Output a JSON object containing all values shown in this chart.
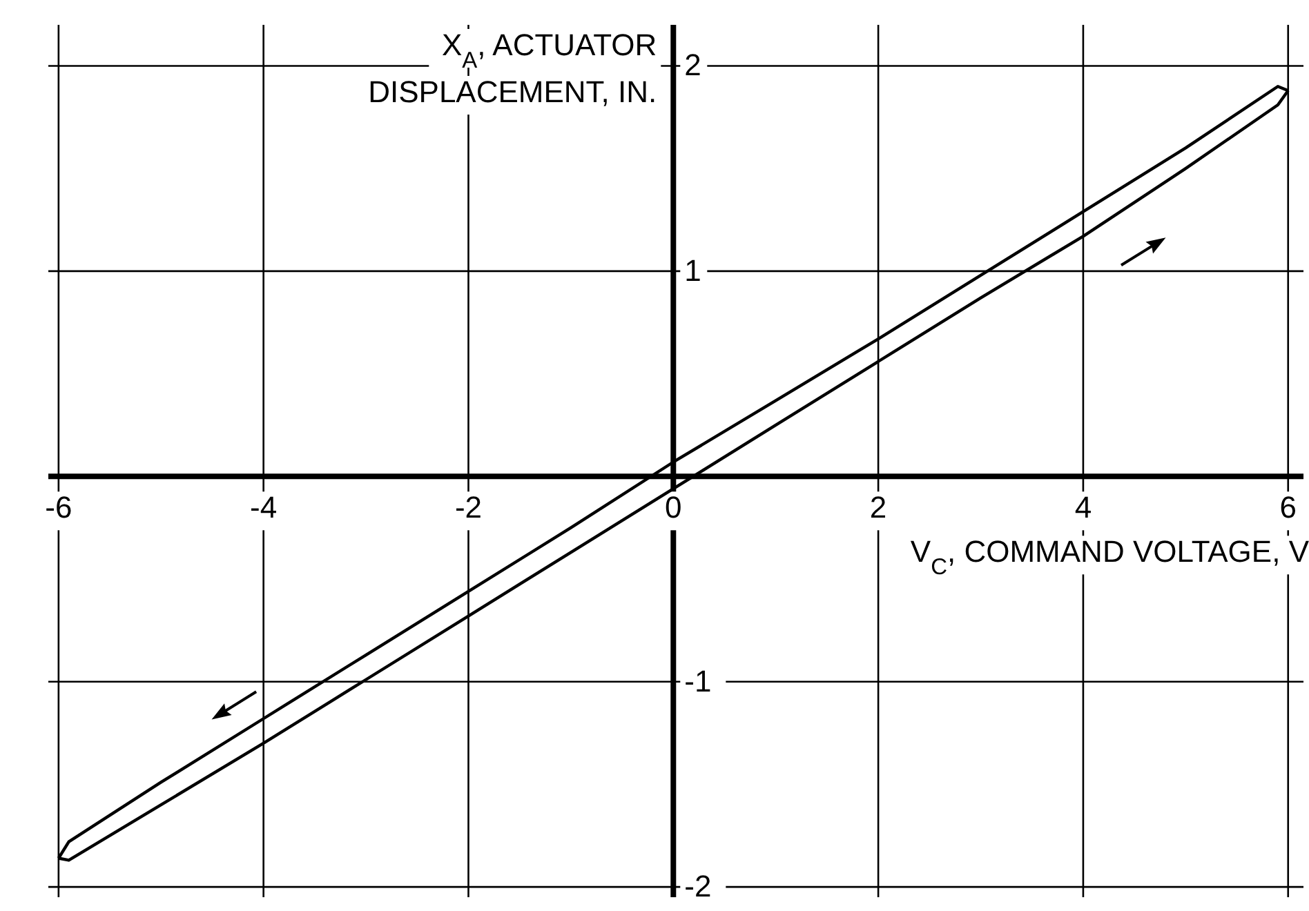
{
  "chart_data": {
    "type": "line",
    "xlabel": "V$_{C}$, COMMAND VOLTAGE, V",
    "ylabel": "X$_{A}$, ACTUATOR DISPLACEMENT, IN.",
    "xlim": [
      -6.1,
      6.15
    ],
    "ylim": [
      -2.05,
      2.2
    ],
    "xticks": [
      -6,
      -4,
      -2,
      0,
      2,
      4,
      6
    ],
    "yticks": [
      -2,
      -1,
      {
        "value": 0,
        "label": null
      },
      1,
      2
    ],
    "grid": true,
    "marker": "none",
    "line_style": "solid",
    "series": [
      {
        "color": "#000000",
        "x": [
          -6,
          -5.9,
          -5,
          -4,
          -3,
          -2,
          -1,
          0,
          1,
          2,
          3,
          4,
          5,
          5.9,
          6
        ],
        "values": [
          -1.86,
          -1.87,
          -1.6,
          -1.3,
          -0.99,
          -0.68,
          -0.37,
          -0.06,
          0.25,
          0.56,
          0.87,
          1.17,
          1.5,
          1.81,
          1.88
        ]
      },
      {
        "color": "#000000",
        "x": [
          -6,
          -5.9,
          -5,
          -4,
          -3,
          -2,
          -1,
          0,
          1,
          2,
          3,
          4,
          5,
          5.9,
          6
        ],
        "values": [
          -1.86,
          -1.78,
          -1.49,
          -1.18,
          -0.87,
          -0.56,
          -0.25,
          0.07,
          0.37,
          0.67,
          0.98,
          1.29,
          1.6,
          1.9,
          1.88
        ]
      }
    ]
  }
}
